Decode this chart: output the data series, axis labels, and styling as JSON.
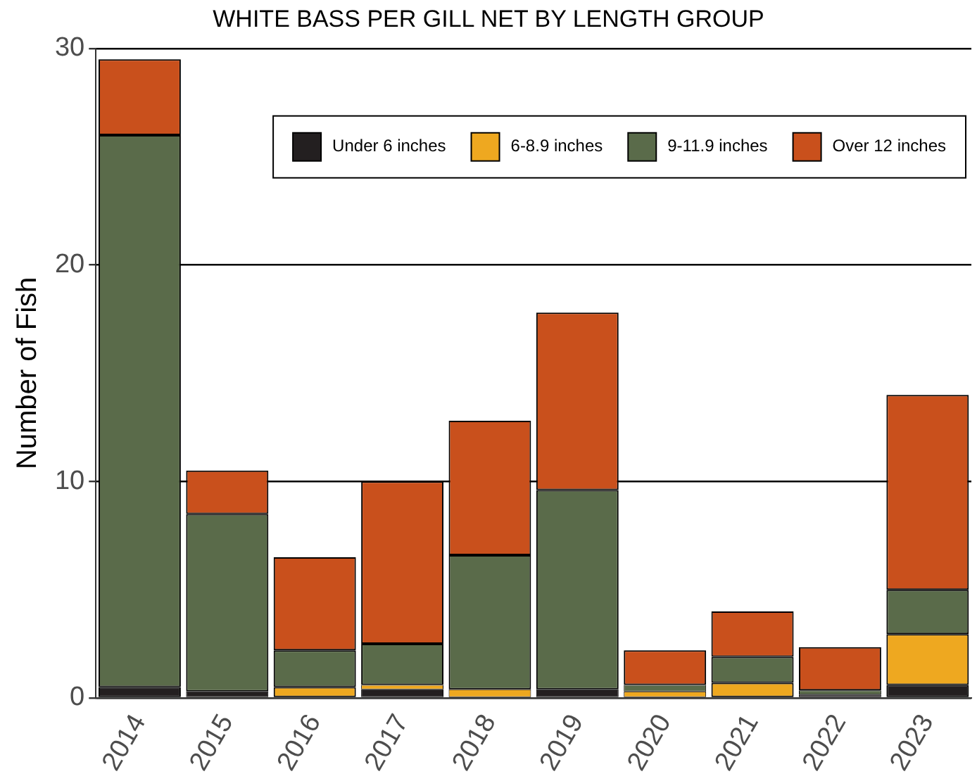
{
  "chart_data": {
    "type": "bar",
    "title": "WHITE BASS PER GILL NET BY LENGTH GROUP",
    "ylabel": "Number of Fish",
    "categories": [
      "2014",
      "2015",
      "2016",
      "2017",
      "2018",
      "2019",
      "2020",
      "2021",
      "2022",
      "2023"
    ],
    "stacked": true,
    "ylim": [
      0,
      30
    ],
    "yticks": [
      0,
      10,
      20,
      30
    ],
    "grid": "y",
    "legend": "top right",
    "series": [
      {
        "name": "Under 6 inches",
        "color": "#231f20",
        "values": [
          0.5,
          0.3,
          0,
          0.4,
          0,
          0.4,
          0,
          0,
          0.15,
          0.6
        ]
      },
      {
        "name": "6-8.9 inches",
        "color": "#eea820",
        "values": [
          0,
          0,
          0.5,
          0.2,
          0.4,
          0,
          0.3,
          0.7,
          0,
          2.35
        ]
      },
      {
        "name": "9-11.9 inches",
        "color": "#5a6b4a",
        "values": [
          25.5,
          8.2,
          1.7,
          1.9,
          6.2,
          9.2,
          0.3,
          1.2,
          0.2,
          2.05
        ]
      },
      {
        "name": "Over 12 inches",
        "color": "#c9501c",
        "values": [
          3.5,
          2.0,
          4.3,
          7.5,
          6.2,
          8.2,
          1.6,
          2.1,
          2.0,
          9.0
        ]
      }
    ]
  }
}
